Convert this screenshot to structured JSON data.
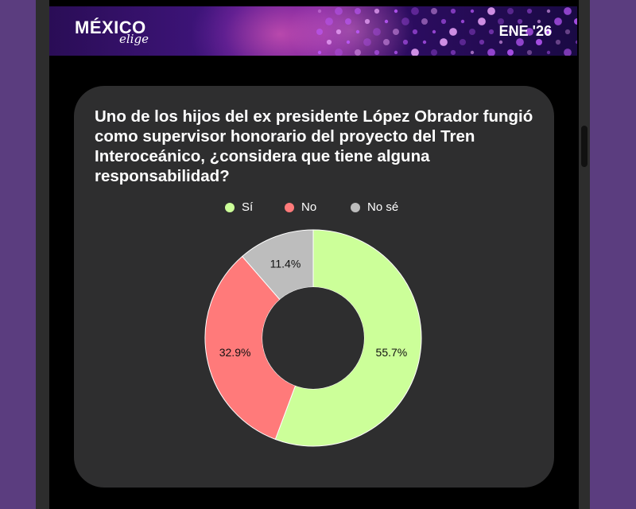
{
  "header": {
    "logo_main": "MÉXICO",
    "logo_sub": "elige",
    "date": "ENE '26"
  },
  "colors": {
    "si": "#ccff99",
    "no": "#ff7a7a",
    "nose": "#bdbdbd",
    "card": "#2e2e2f"
  },
  "chart_data": {
    "type": "pie",
    "title": "Uno de los hijos del ex presidente López Obrador fungió como supervisor honorario del proyecto del Tren Interoceánico, ¿considera que tiene alguna responsabilidad?",
    "legend_position": "top",
    "categories": [
      "Sí",
      "No",
      "No sé"
    ],
    "values": [
      55.7,
      32.9,
      11.4
    ],
    "data_labels": [
      "55.7%",
      "32.9%",
      "11.4%"
    ],
    "colors": [
      "#ccff99",
      "#ff7a7a",
      "#bdbdbd"
    ]
  }
}
